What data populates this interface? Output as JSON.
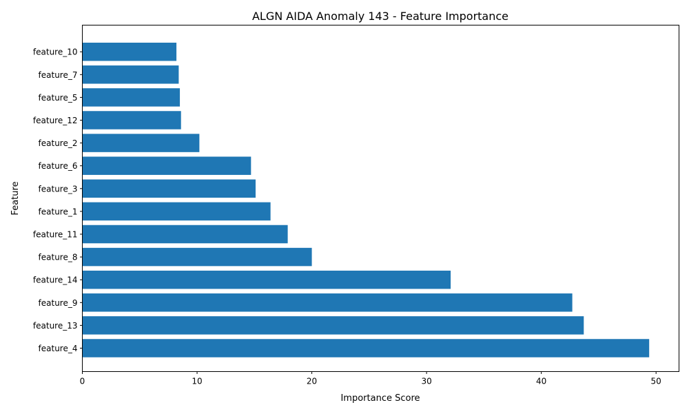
{
  "chart_data": {
    "type": "bar",
    "orientation": "horizontal",
    "title": "ALGN AIDA Anomaly 143 - Feature Importance",
    "xlabel": "Importance Score",
    "ylabel": "Feature",
    "xlim": [
      0,
      52
    ],
    "x_ticks": [
      0,
      10,
      20,
      30,
      40,
      50
    ],
    "grid": false,
    "legend": "none",
    "bar_color": "#1f77b4",
    "categories": [
      "feature_4",
      "feature_13",
      "feature_9",
      "feature_14",
      "feature_8",
      "feature_11",
      "feature_1",
      "feature_3",
      "feature_6",
      "feature_2",
      "feature_12",
      "feature_5",
      "feature_7",
      "feature_10"
    ],
    "values": [
      49.4,
      43.7,
      42.7,
      32.1,
      20.0,
      17.9,
      16.4,
      15.1,
      14.7,
      10.2,
      8.6,
      8.5,
      8.4,
      8.2
    ]
  }
}
